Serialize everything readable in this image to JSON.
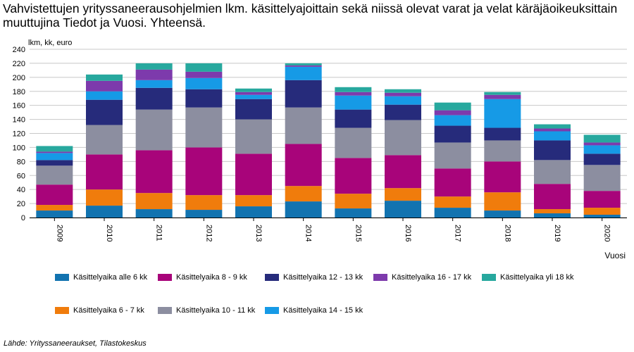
{
  "chart_data": {
    "type": "bar",
    "stacked": true,
    "title": "Vahvistettujen yrityssaneerausohjelmien lkm. käsittelyajoittain sekä niissä olevat varat ja velat käräjäoikeuksittain muuttujina Tiedot ja Vuosi. Yhteensä.",
    "ylabel": "lkm, kk, euro",
    "xlabel": "Vuosi",
    "ylim": [
      0,
      240
    ],
    "yticks": [
      "0",
      "20",
      "40",
      "60",
      "80",
      "100",
      "120",
      "140",
      "160",
      "180",
      "200",
      "220",
      "240"
    ],
    "grid": true,
    "categories": [
      "2009",
      "2010",
      "2011",
      "2012",
      "2013",
      "2014",
      "2015",
      "2016",
      "2017",
      "2018",
      "2019",
      "2020"
    ],
    "series": [
      {
        "name": "Käsittelyaika alle 6 kk",
        "color": "#1273b0",
        "values": [
          10,
          17,
          12,
          11,
          16,
          23,
          13,
          24,
          14,
          10,
          6,
          4
        ]
      },
      {
        "name": "Käsittelyaika 6 - 7 kk",
        "color": "#f07c0c",
        "values": [
          8,
          23,
          23,
          21,
          16,
          22,
          21,
          18,
          16,
          26,
          6,
          10
        ]
      },
      {
        "name": "Käsittelyaika 8 - 9 kk",
        "color": "#a8047a",
        "values": [
          29,
          50,
          61,
          68,
          59,
          60,
          51,
          47,
          40,
          44,
          36,
          24
        ]
      },
      {
        "name": "Käsittelyaika 10 - 11 kk",
        "color": "#8c8ea0",
        "values": [
          27,
          42,
          58,
          57,
          49,
          52,
          43,
          50,
          37,
          30,
          34,
          37
        ]
      },
      {
        "name": "Käsittelyaika 12 - 13 kk",
        "color": "#262b7b",
        "values": [
          8,
          36,
          31,
          26,
          29,
          39,
          26,
          22,
          24,
          18,
          28,
          16
        ]
      },
      {
        "name": "Käsittelyaika 14 - 15 kk",
        "color": "#169ae6",
        "values": [
          10,
          12,
          11,
          16,
          6,
          19,
          20,
          12,
          15,
          41,
          13,
          12
        ]
      },
      {
        "name": "Käsittelyaika 16 - 17 kk",
        "color": "#7d3aac",
        "values": [
          2,
          15,
          15,
          9,
          4,
          2,
          5,
          5,
          7,
          6,
          4,
          4
        ]
      },
      {
        "name": "Käsittelyaika yli 18 kk",
        "color": "#27a89e",
        "values": [
          8,
          9,
          9,
          12,
          5,
          3,
          7,
          5,
          11,
          4,
          6,
          11
        ]
      }
    ]
  },
  "legend": {
    "row1": [
      {
        "label": "Käsittelyaika alle 6 kk",
        "color": "#1273b0"
      },
      {
        "label": "Käsittelyaika 8 - 9 kk",
        "color": "#a8047a"
      },
      {
        "label": "Käsittelyaika 12 - 13 kk",
        "color": "#262b7b"
      },
      {
        "label": "Käsittelyaika 16 - 17 kk",
        "color": "#7d3aac"
      },
      {
        "label": "Käsittelyaika yli 18 kk",
        "color": "#27a89e"
      }
    ],
    "row2": [
      {
        "label": "Käsittelyaika 6 - 7 kk",
        "color": "#f07c0c"
      },
      {
        "label": "Käsittelyaika 10 - 11 kk",
        "color": "#8c8ea0"
      },
      {
        "label": "Käsittelyaika 14 - 15 kk",
        "color": "#169ae6"
      }
    ]
  },
  "source": "Lähde: Yrityssaneeraukset, Tilastokeskus"
}
